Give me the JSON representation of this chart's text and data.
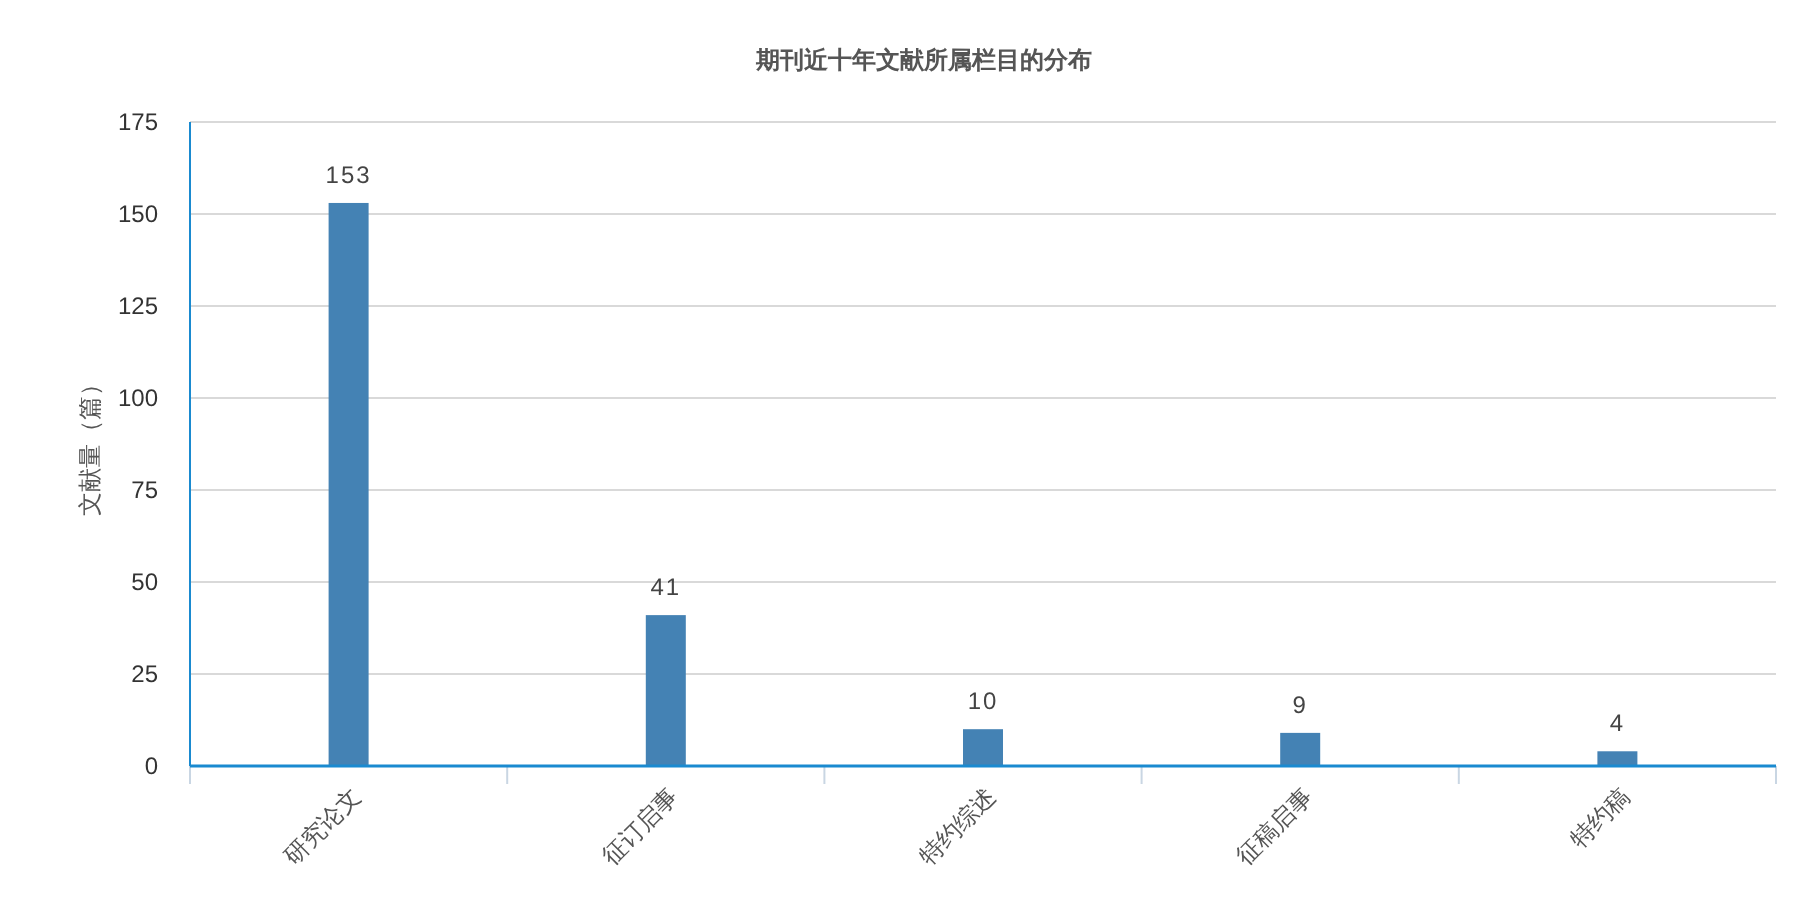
{
  "chart_data": {
    "type": "bar",
    "title": "期刊近十年文献所属栏目的分布",
    "ylabel": "文献量（篇）",
    "categories": [
      "研究论文",
      "征订启事",
      "特约综述",
      "征稿启事",
      "特约稿"
    ],
    "values": [
      153,
      41,
      10,
      9,
      4
    ],
    "color": "#4482b4",
    "ylim": [
      0,
      175
    ],
    "yticks": [
      0,
      25,
      50,
      75,
      100,
      125,
      150,
      175
    ],
    "grid": "y",
    "data_labels": true
  }
}
